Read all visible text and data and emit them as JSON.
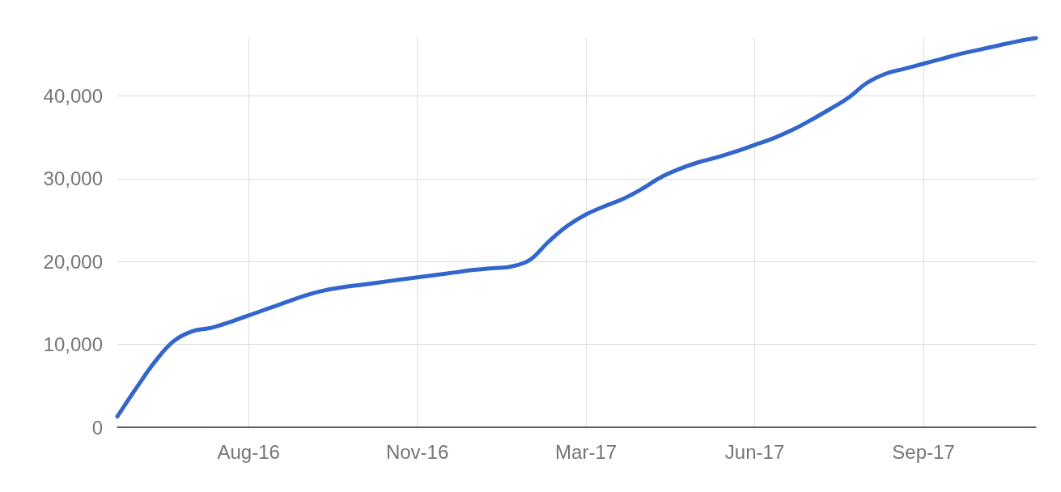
{
  "chart_data": {
    "type": "line",
    "categories": [
      null,
      null,
      null,
      null,
      null,
      null,
      null,
      "Aug-16",
      null,
      null,
      null,
      null,
      null,
      null,
      null,
      null,
      "Nov-16",
      null,
      null,
      null,
      null,
      null,
      null,
      null,
      null,
      "Mar-17",
      null,
      null,
      null,
      null,
      null,
      null,
      null,
      null,
      "Jun-17",
      null,
      null,
      null,
      null,
      null,
      null,
      null,
      null,
      "Sep-17",
      null,
      null,
      null,
      null,
      null,
      null
    ],
    "series": [
      {
        "color": "#3366cc",
        "values": [
          1300,
          4700,
          7900,
          10400,
          11600,
          12000,
          12700,
          13500,
          14300,
          15100,
          15900,
          16500,
          16900,
          17200,
          17500,
          17800,
          18100,
          18400,
          18700,
          19000,
          19200,
          19400,
          20200,
          22400,
          24300,
          25700,
          26700,
          27600,
          28800,
          30200,
          31200,
          32000,
          32600,
          33300,
          34100,
          34900,
          35900,
          37100,
          38400,
          39800,
          41600,
          42700,
          43300,
          43900,
          44500,
          45100,
          45600,
          46100,
          46600,
          47000
        ]
      }
    ],
    "ylim": [
      0,
      47000
    ],
    "yticks": [
      {
        "value": 0,
        "label": "0"
      },
      {
        "value": 10000,
        "label": "10,000"
      },
      {
        "value": 20000,
        "label": "20,000"
      },
      {
        "value": 30000,
        "label": "30,000"
      },
      {
        "value": 40000,
        "label": "40,000"
      }
    ],
    "grid": true,
    "marker": "none",
    "line_style": "solid"
  }
}
